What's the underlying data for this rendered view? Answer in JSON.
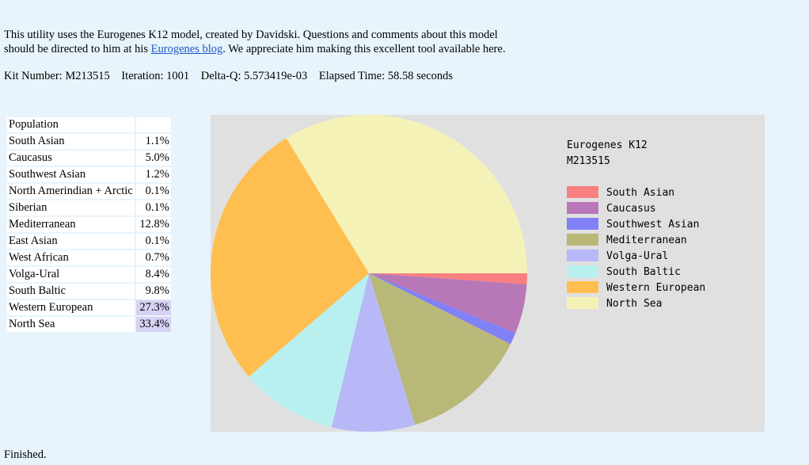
{
  "intro": {
    "text1": "This utility uses the Eurogenes K12 model, created by Davidski. Questions and comments about this model",
    "text2": "should be directed to him at his ",
    "link": "Eurogenes blog",
    "text3": ". We appreciate him making this excellent tool available here."
  },
  "stats": {
    "kit": "Kit Number: M213515",
    "iteration": "Iteration: 1001",
    "deltaq": "Delta-Q: 5.573419e-03",
    "elapsed": "Elapsed Time: 58.58 seconds"
  },
  "table": {
    "header": "Population",
    "rows": [
      {
        "name": "South Asian",
        "pct": "1.1%"
      },
      {
        "name": "Caucasus",
        "pct": "5.0%"
      },
      {
        "name": "Southwest Asian",
        "pct": "1.2%"
      },
      {
        "name": "North Amerindian + Arctic",
        "pct": "0.1%"
      },
      {
        "name": "Siberian",
        "pct": "0.1%"
      },
      {
        "name": "Mediterranean",
        "pct": "12.8%"
      },
      {
        "name": "East Asian",
        "pct": "0.1%"
      },
      {
        "name": "West African",
        "pct": "0.7%"
      },
      {
        "name": "Volga-Ural",
        "pct": "8.4%"
      },
      {
        "name": "South Baltic",
        "pct": "9.8%"
      },
      {
        "name": "Western European",
        "pct": "27.3%"
      },
      {
        "name": "North Sea",
        "pct": "33.4%"
      }
    ]
  },
  "chart_data": {
    "type": "pie",
    "title": "Eurogenes K12",
    "subtitle": "M213515",
    "legend_position": "right",
    "slices": [
      {
        "name": "South Asian",
        "value": 1.1,
        "color": "#f88080"
      },
      {
        "name": "Caucasus",
        "value": 5.0,
        "color": "#b878b8"
      },
      {
        "name": "Southwest Asian",
        "value": 1.2,
        "color": "#8080f8"
      },
      {
        "name": "Mediterranean",
        "value": 12.8,
        "color": "#b8b878"
      },
      {
        "name": "Volga-Ural",
        "value": 8.4,
        "color": "#b8b8f8"
      },
      {
        "name": "South Baltic",
        "value": 9.8,
        "color": "#b8f0f0"
      },
      {
        "name": "Western European",
        "value": 27.3,
        "color": "#ffbe50"
      },
      {
        "name": "North Sea",
        "value": 33.4,
        "color": "#f5f2b8"
      }
    ]
  },
  "status": "Finished."
}
